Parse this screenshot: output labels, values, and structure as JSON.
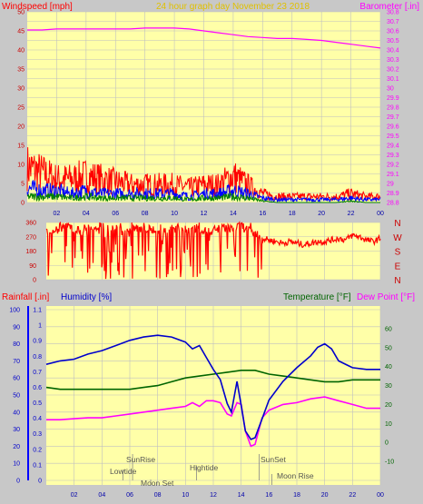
{
  "header": {
    "title": "24 hour graph day   November 23 2018",
    "left_label": "Windspeed [mph]",
    "right_label": "Barometer [.in]"
  },
  "colors": {
    "background": "#c8c8c8",
    "plot": "#ffffa8",
    "grid": "#c0c0c0",
    "wind_gust": "#ff0000",
    "wind_avg": "#0000ff",
    "wind_low": "#008000",
    "barometer": "#ff00ff",
    "direction": "#ff0000",
    "rain": "#0000ff",
    "humidity": "#0000cc",
    "temperature": "#006400",
    "dewpoint": "#ff00ff",
    "title": "#e0c000"
  },
  "chart_data": [
    {
      "type": "line",
      "name": "wind-barometer",
      "x_ticks": [
        "02",
        "04",
        "06",
        "08",
        "10",
        "12",
        "14",
        "16",
        "18",
        "20",
        "22",
        "00"
      ],
      "x_range": [
        0,
        24
      ],
      "ylabel_left": "Windspeed [mph]",
      "ylabel_right": "Barometer [.in]",
      "ylim_left": [
        0,
        50
      ],
      "yticks_left": [
        0,
        5,
        10,
        15,
        20,
        25,
        30,
        35,
        40,
        45,
        50
      ],
      "ylim_right": [
        28.8,
        30.8
      ],
      "yticks_right": [
        "28.8",
        "28.9",
        "29",
        "29.1",
        "29.2",
        "29.3",
        "29.4",
        "29.5",
        "29.6",
        "29.7",
        "29.8",
        "29.9",
        "30",
        "30.1",
        "30.2",
        "30.3",
        "30.4",
        "30.5",
        "30.6",
        "30.7",
        "30.8"
      ],
      "barometer": {
        "x": [
          0,
          1,
          2,
          3,
          4,
          5,
          6,
          7,
          8,
          9,
          10,
          11,
          12,
          13,
          14,
          15,
          16,
          17,
          18,
          19,
          20,
          21,
          22,
          23,
          24
        ],
        "y": [
          30.61,
          30.61,
          30.62,
          30.62,
          30.62,
          30.62,
          30.62,
          30.62,
          30.63,
          30.63,
          30.63,
          30.62,
          30.6,
          30.58,
          30.56,
          30.54,
          30.53,
          30.52,
          30.52,
          30.51,
          30.5,
          30.48,
          30.46,
          30.44,
          30.42
        ]
      },
      "wind_gust_max": {
        "x": [
          0,
          1,
          2,
          3,
          4,
          5,
          6,
          7,
          8,
          9,
          10,
          11,
          12,
          13,
          14,
          15,
          16,
          17,
          18,
          19,
          20,
          21,
          22,
          23,
          24
        ],
        "y": [
          12,
          10,
          8,
          8,
          9,
          8,
          7,
          6,
          6,
          6,
          6,
          5,
          6,
          6,
          9,
          6,
          3,
          2,
          2,
          2,
          2,
          2,
          3,
          2,
          2
        ]
      },
      "wind_avg": {
        "x": [
          0,
          1,
          2,
          3,
          4,
          5,
          6,
          7,
          8,
          9,
          10,
          11,
          12,
          13,
          14,
          15,
          16,
          17,
          18,
          19,
          20,
          21,
          22,
          23,
          24
        ],
        "y": [
          5,
          4,
          4,
          3,
          4,
          3,
          3,
          3,
          3,
          3,
          3,
          2,
          3,
          3,
          4,
          3,
          1.5,
          1,
          1,
          1,
          1,
          1,
          1.5,
          1,
          1
        ]
      },
      "wind_low": {
        "x": [
          0,
          1,
          2,
          3,
          4,
          5,
          6,
          7,
          8,
          9,
          10,
          11,
          12,
          13,
          14,
          15,
          16,
          17,
          18,
          19,
          20,
          21,
          22,
          23,
          24
        ],
        "y": [
          2,
          2,
          2,
          1.5,
          2,
          1.5,
          1.5,
          1.5,
          1.5,
          1.5,
          1.5,
          1,
          1.5,
          1.5,
          2,
          1.5,
          0.5,
          0,
          0,
          0,
          0,
          0,
          0.5,
          0,
          0
        ]
      }
    },
    {
      "type": "scatter",
      "name": "wind-direction",
      "x_range": [
        0,
        24
      ],
      "ylim": [
        0,
        360
      ],
      "yticks": [
        0,
        90,
        180,
        270,
        360
      ],
      "right_labels": [
        "N",
        "W",
        "S",
        "E",
        "N"
      ],
      "direction": {
        "x": [
          0,
          0.5,
          1,
          1.5,
          2,
          2.5,
          3,
          3.5,
          4,
          4.5,
          5,
          5.5,
          6,
          6.5,
          7,
          7.5,
          8,
          8.5,
          9,
          9.5,
          10,
          10.5,
          11,
          11.5,
          12,
          12.5,
          13,
          13.5,
          14,
          14.5,
          15,
          15.5,
          16,
          16.5,
          17,
          17.5,
          18,
          18.5,
          19,
          19.5,
          20,
          20.5,
          21,
          21.5,
          22,
          22.5,
          23,
          23.5,
          24
        ],
        "y": [
          320,
          300,
          330,
          340,
          320,
          310,
          330,
          320,
          340,
          310,
          320,
          330,
          340,
          320,
          330,
          310,
          330,
          300,
          320,
          330,
          310,
          320,
          330,
          300,
          310,
          320,
          330,
          320,
          340,
          310,
          290,
          260,
          250,
          240,
          230,
          240,
          230,
          220,
          230,
          240,
          240,
          250,
          260,
          250,
          280,
          270,
          250,
          240,
          260
        ]
      }
    },
    {
      "type": "line",
      "name": "rain-humidity-temperature",
      "x_ticks": [
        "02",
        "04",
        "06",
        "08",
        "10",
        "12",
        "14",
        "16",
        "18",
        "20",
        "22",
        "00"
      ],
      "x_range": [
        0,
        24
      ],
      "ylabel_left_rain": "Rainfall [.in]",
      "ylabel_left_humidity": "Humidity [%]",
      "ylabel_right_temp": "Temperature [°F]",
      "ylabel_right_dew": "Dew Point [°F]",
      "ylim_humidity": [
        0,
        100
      ],
      "yticks_humidity": [
        0,
        10,
        20,
        30,
        40,
        50,
        60,
        70,
        80,
        90,
        100
      ],
      "ylim_rain": [
        0,
        1.1
      ],
      "yticks_rain": [
        "0",
        "0.1",
        "0.2",
        "0.3",
        "0.4",
        "0.5",
        "0.6",
        "0.7",
        "0.8",
        "0.9",
        "1",
        "1.1"
      ],
      "ylim_temp": [
        -20,
        70
      ],
      "yticks_temp": [
        -10,
        0,
        10,
        20,
        30,
        40,
        50,
        60
      ],
      "rainfall": {
        "x": [
          0,
          24
        ],
        "y": [
          0,
          0
        ]
      },
      "humidity": {
        "x": [
          0,
          1,
          2,
          3,
          4,
          5,
          6,
          7,
          8,
          9,
          10,
          10.5,
          11,
          11.5,
          12,
          12.5,
          13,
          13.3,
          13.7,
          14,
          14.3,
          14.7,
          15,
          15.5,
          16,
          17,
          18,
          19,
          19.5,
          20,
          20.5,
          21,
          22,
          23,
          24
        ],
        "y": [
          68,
          70,
          71,
          74,
          76,
          79,
          82,
          84,
          85,
          84,
          81,
          77,
          79,
          72,
          65,
          59,
          45,
          40,
          58,
          44,
          29,
          24,
          25,
          36,
          47,
          58,
          66,
          73,
          78,
          80,
          77,
          70,
          66,
          65,
          65
        ]
      },
      "temperature": {
        "x": [
          0,
          1,
          2,
          3,
          4,
          5,
          6,
          7,
          8,
          9,
          10,
          11,
          12,
          13,
          14,
          15,
          16,
          17,
          18,
          19,
          20,
          21,
          22,
          23,
          24
        ],
        "y": [
          29,
          28,
          28,
          28,
          28,
          28,
          28,
          29,
          30,
          32,
          34,
          35,
          36,
          37,
          38,
          38,
          36,
          35,
          34,
          33,
          32,
          32,
          33,
          33,
          33
        ]
      },
      "dewpoint": {
        "x": [
          0,
          1,
          2,
          3,
          4,
          5,
          6,
          7,
          8,
          9,
          10,
          10.5,
          11,
          11.5,
          12,
          12.5,
          13,
          13.3,
          13.7,
          14,
          14.3,
          14.7,
          15,
          15.5,
          16,
          17,
          18,
          19,
          20,
          21,
          22,
          23,
          24
        ],
        "y": [
          12,
          12,
          12.5,
          13,
          13,
          14,
          15,
          16,
          17,
          18,
          19,
          21,
          19,
          22,
          22,
          21,
          15,
          14,
          21,
          20,
          6,
          -2,
          -1,
          13,
          17,
          20,
          21,
          23,
          24,
          22,
          20,
          18,
          18
        ]
      }
    }
  ],
  "annotations": {
    "sunrise": "SunRise",
    "lowtide": "Lowtide",
    "moonset": "Moon Set",
    "hightide": "Hightide",
    "sunset": "SunSet",
    "moonrise": "Moon Rise"
  }
}
